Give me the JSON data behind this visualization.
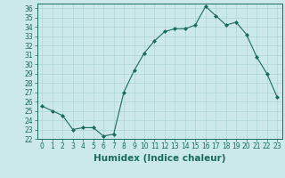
{
  "xlabel": "Humidex (Indice chaleur)",
  "x_values": [
    0,
    1,
    2,
    3,
    4,
    5,
    6,
    7,
    8,
    9,
    10,
    11,
    12,
    13,
    14,
    15,
    16,
    17,
    18,
    19,
    20,
    21,
    22,
    23
  ],
  "y_values": [
    25.5,
    25.0,
    24.5,
    23.0,
    23.2,
    23.2,
    22.3,
    22.5,
    27.0,
    29.3,
    31.2,
    32.5,
    33.5,
    33.8,
    33.8,
    34.2,
    36.2,
    35.2,
    34.2,
    34.5,
    33.2,
    30.8,
    29.0,
    26.5
  ],
  "ylim": [
    22,
    36.5
  ],
  "xlim": [
    -0.5,
    23.5
  ],
  "yticks": [
    22,
    23,
    24,
    25,
    26,
    27,
    28,
    29,
    30,
    31,
    32,
    33,
    34,
    35,
    36
  ],
  "xticks": [
    0,
    1,
    2,
    3,
    4,
    5,
    6,
    7,
    8,
    9,
    10,
    11,
    12,
    13,
    14,
    15,
    16,
    17,
    18,
    19,
    20,
    21,
    22,
    23
  ],
  "line_color": "#1a6b5a",
  "marker": "D",
  "marker_size": 2.0,
  "bg_color": "#cce9ea",
  "grid_color": "#aed4d5",
  "tick_fontsize": 5.5,
  "label_fontsize": 7.5
}
